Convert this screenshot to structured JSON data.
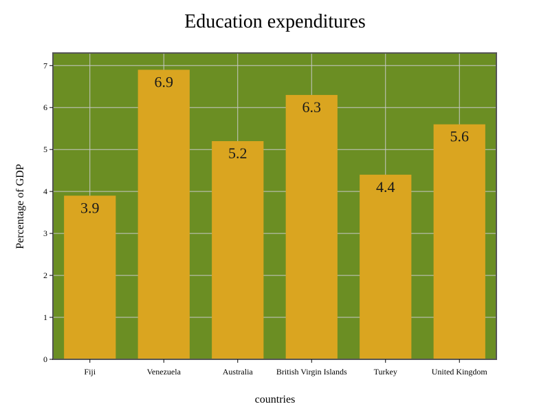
{
  "chart_data": {
    "type": "bar",
    "title": "Education expenditures",
    "xlabel": "countries",
    "ylabel": "Percentage of GDP",
    "categories": [
      "Fiji",
      "Venezuela",
      "Australia",
      "British Virgin Islands",
      "Turkey",
      "United Kingdom"
    ],
    "values": [
      3.9,
      6.9,
      5.2,
      6.3,
      4.4,
      5.6
    ],
    "data_labels": [
      "3.9",
      "6.9",
      "5.2",
      "6.3",
      "4.4",
      "5.6"
    ],
    "ylim": [
      0,
      7.3
    ],
    "yticks": [
      0,
      1,
      2,
      3,
      4,
      5,
      6,
      7
    ],
    "grid": true,
    "legend": "none",
    "colors": {
      "plot_background": "#6b8e23",
      "bar": "#daa520",
      "grid": "#c8c8c8",
      "frame": "#555555"
    }
  }
}
